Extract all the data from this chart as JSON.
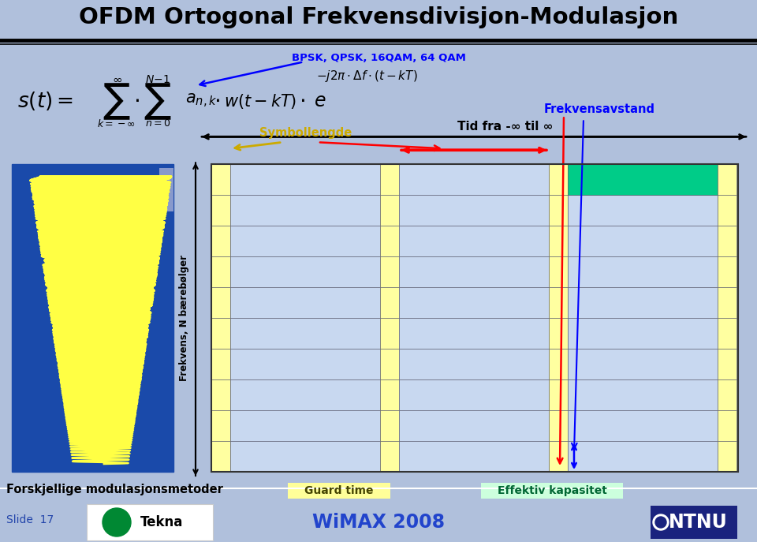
{
  "title": "OFDM Ortogonal Frekvensdivisjon-Modulasjon",
  "bg_color": "#b0c0dc",
  "title_bg": "#ffffff",
  "bpsk_label": "BPSK, QPSK, 16QAM, 64 QAM",
  "symbollengde_label": "Symbollengde",
  "frekvensavstand_label": "Frekvensavstand",
  "tid_label": "Tid fra -∞ til ∞",
  "frekvens_label": "Frekvens, N bærebølger",
  "guard_time_label": "Guard time",
  "effektiv_label": "Effektiv kapasitet",
  "forskjellige_label": "Forskjellige modulasjonsmetoder",
  "slide_number": "Slide  17",
  "wimax_text": "WiMAX 2008",
  "ntnu_text": "NTNU",
  "grid_blue": "#c8d8f0",
  "guard_yellow": "#ffffa0",
  "green_cell": "#00cc88",
  "n_rows": 10,
  "title_fontsize": 22
}
